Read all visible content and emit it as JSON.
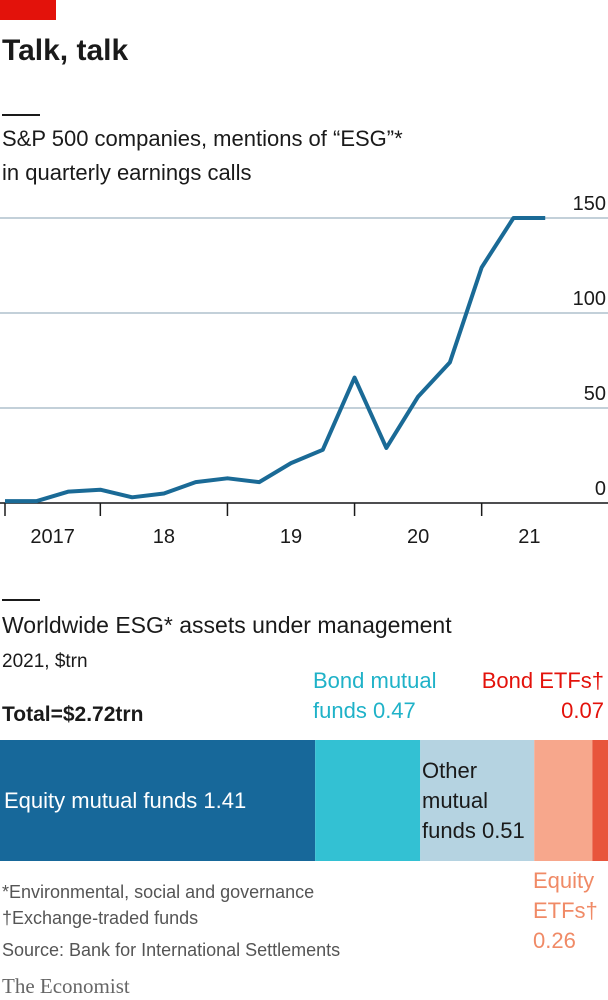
{
  "title": "Talk, talk",
  "chart_data": [
    {
      "type": "line",
      "title": "S&P 500 companies, mentions of “ESG”*",
      "subtitle": "in quarterly earnings calls",
      "x": [
        2017.25,
        2017.5,
        2017.75,
        2018,
        2018.25,
        2018.5,
        2018.75,
        2019,
        2019.25,
        2019.5,
        2019.75,
        2020,
        2020.25,
        2020.5,
        2020.75,
        2021,
        2021.25,
        2021.5
      ],
      "series": [
        {
          "color": "#1a6a96",
          "values": [
            1,
            1,
            6,
            7,
            3,
            5,
            11,
            13,
            11,
            21,
            28,
            66,
            29,
            56,
            74,
            124,
            150,
            150
          ]
        }
      ],
      "xlim": [
        2017.25,
        2021.75
      ],
      "xticks": [
        2018,
        2019,
        2020,
        2021
      ],
      "xlabels": [
        "2017",
        "18",
        "19",
        "20",
        "21"
      ],
      "ylim": [
        0,
        150
      ],
      "yticks": [
        0,
        50,
        100,
        150
      ],
      "grid": true
    },
    {
      "type": "stacked-bar",
      "title": "Worldwide ESG* assets under management",
      "subtitle": "2021, $trn",
      "annotation": "Total=$2.72trn",
      "categories": [
        "Equity mutual funds",
        "Bond mutual funds",
        "Other mutual funds",
        "Equity ETFs†",
        "Bond ETFs†"
      ],
      "values": [
        1.41,
        0.47,
        0.51,
        0.26,
        0.07
      ],
      "colors": [
        "#17689a",
        "#33c1d3",
        "#b5d3e1",
        "#f7a78c",
        "#e8553c"
      ],
      "label_colors": [
        "#ffffff",
        "#1fb2c8",
        "#1a1a1a",
        "#f08a66",
        "#e3120b"
      ],
      "xlim": [
        0,
        2.72
      ]
    }
  ],
  "footnotes": [
    "*Environmental, social and governance",
    "†Exchange-traded funds"
  ],
  "source": "Source: Bank for International Settlements",
  "brand": "The Economist"
}
